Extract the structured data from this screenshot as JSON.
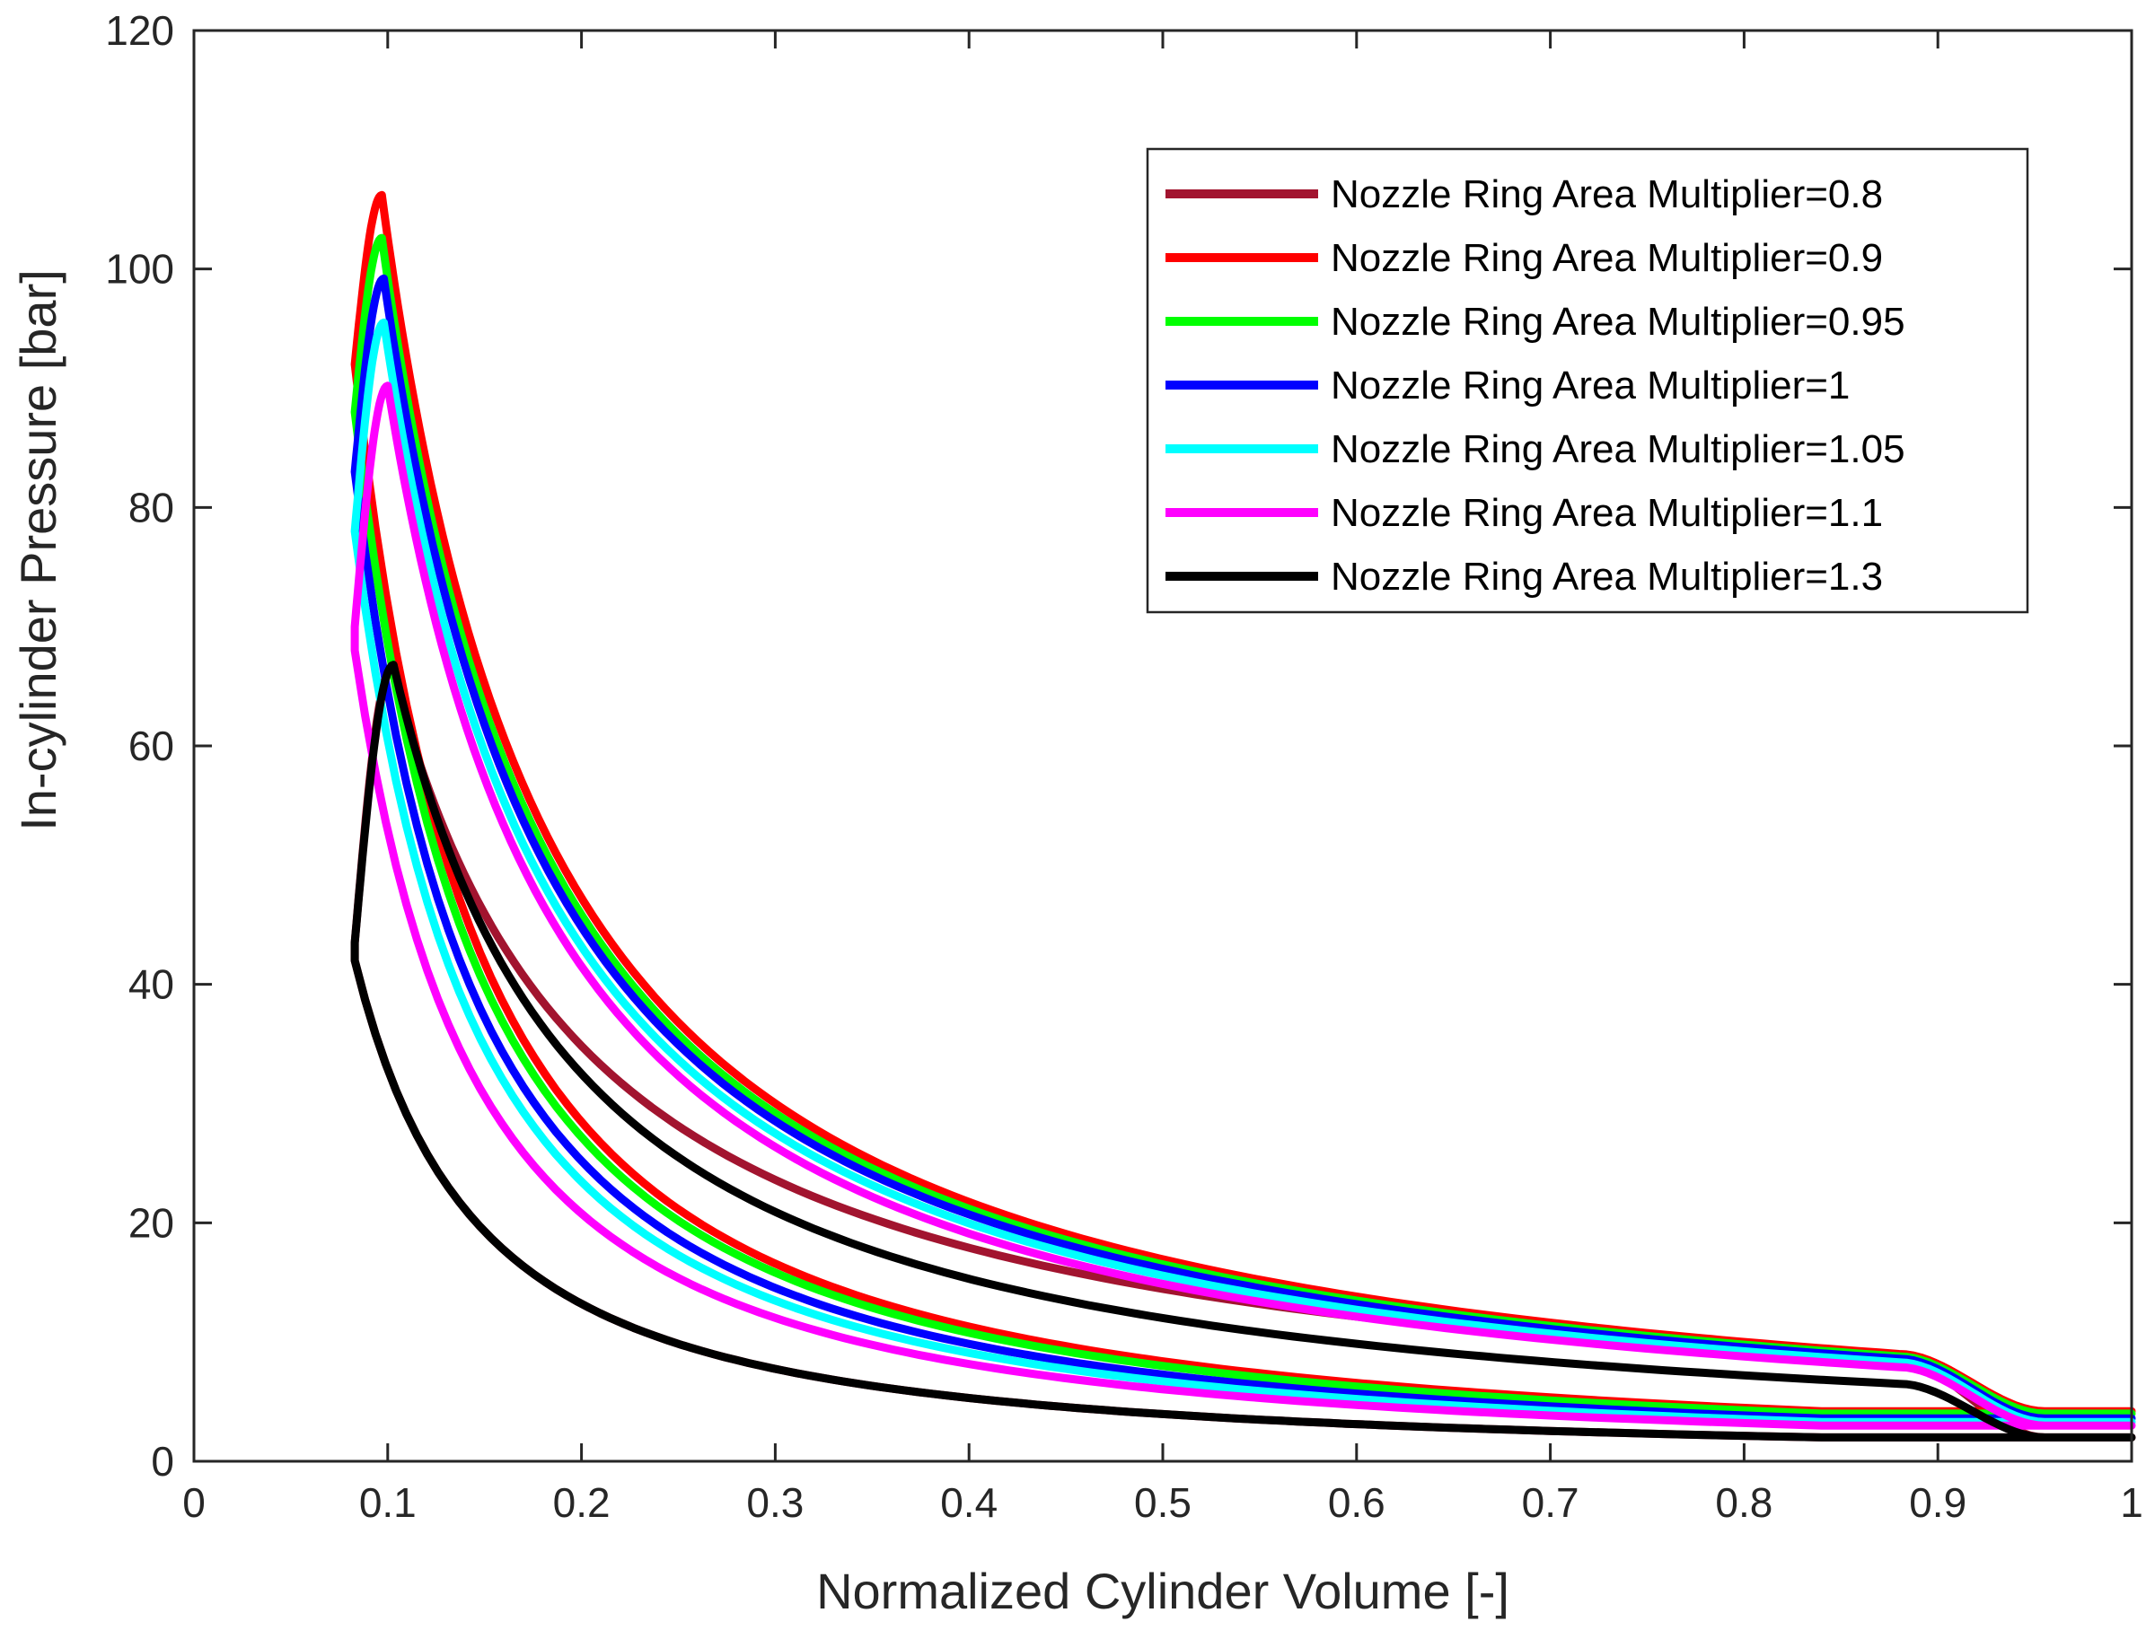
{
  "chart_data": {
    "type": "line",
    "title": "",
    "xlabel": "Normalized Cylinder Volume [-]",
    "ylabel": "In-cylinder Pressure [bar]",
    "xlim": [
      0,
      1
    ],
    "ylim": [
      0,
      120
    ],
    "xticks": [
      0,
      0.1,
      0.2,
      0.3,
      0.4,
      0.5,
      0.6,
      0.7,
      0.8,
      0.9,
      1
    ],
    "xtick_labels": [
      "0",
      "0.1",
      "0.2",
      "0.3",
      "0.4",
      "0.5",
      "0.6",
      "0.7",
      "0.8",
      "0.9",
      "1"
    ],
    "yticks": [
      0,
      20,
      40,
      60,
      80,
      100,
      120
    ],
    "ytick_labels": [
      "0",
      "20",
      "40",
      "60",
      "80",
      "100",
      "120"
    ],
    "grid": false,
    "legend_position": "top-right",
    "series": [
      {
        "name": "Nozzle Ring Area Multiplier=0.8",
        "color": "#A2142F",
        "peak": 66.5,
        "peak_x": 0.102,
        "start_p": 43.5,
        "exh_p": 8.4,
        "low_p": 2.0,
        "compression": "low"
      },
      {
        "name": "Nozzle Ring Area Multiplier=0.9",
        "color": "#FF0000",
        "peak": 106.2,
        "peak_x": 0.097,
        "start_p": 92,
        "exh_p": 9.0,
        "low_p": 4.2,
        "compression": "high"
      },
      {
        "name": "Nozzle Ring Area Multiplier=0.95",
        "color": "#00FF00",
        "peak": 102.6,
        "peak_x": 0.097,
        "start_p": 88,
        "exh_p": 8.8,
        "low_p": 4.0,
        "compression": "high"
      },
      {
        "name": "Nozzle Ring Area Multiplier=1",
        "color": "#0000FF",
        "peak": 99.2,
        "peak_x": 0.098,
        "start_p": 83,
        "exh_p": 8.6,
        "low_p": 3.6,
        "compression": "high"
      },
      {
        "name": "Nozzle Ring Area Multiplier=1.05",
        "color": "#00FFFF",
        "peak": 95.5,
        "peak_x": 0.098,
        "start_p": 78,
        "exh_p": 8.3,
        "low_p": 3.3,
        "compression": "high"
      },
      {
        "name": "Nozzle Ring Area Multiplier=1.1",
        "color": "#FF00FF",
        "peak": 90.2,
        "peak_x": 0.1,
        "start_p": 70,
        "exh_p": 7.9,
        "low_p": 3.0,
        "compression": "mid"
      },
      {
        "name": "Nozzle Ring Area Multiplier=1.3",
        "color": "#000000",
        "peak": 66.8,
        "peak_x": 0.103,
        "start_p": 43.5,
        "exh_p": 6.5,
        "low_p": 2.0,
        "compression": "low"
      }
    ]
  }
}
